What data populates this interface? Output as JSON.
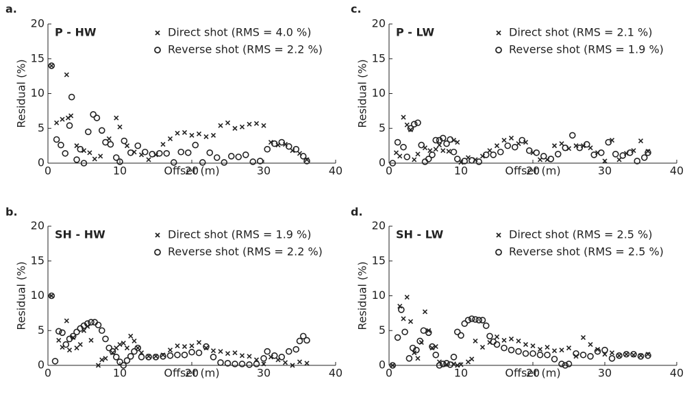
{
  "chart_data": [
    {
      "type": "scatter",
      "panel_label": "a.",
      "title": "P - HW",
      "xlabel": "Offset (m)",
      "ylabel": "Residual (%)",
      "xlim": [
        0,
        40
      ],
      "ylim": [
        0,
        20
      ],
      "xticks": [
        0,
        10,
        20,
        30,
        40
      ],
      "yticks": [
        0,
        5,
        10,
        15,
        20
      ],
      "series": [
        {
          "name": "Direct shot (RMS = 4.0 %)",
          "marker": "x",
          "color": "#222222",
          "x": [
            0.5,
            1.2,
            2,
            2.6,
            2.8,
            3.2,
            4,
            5,
            5.8,
            6.5,
            7.3,
            8.5,
            9.5,
            10,
            11,
            12,
            13,
            14,
            15,
            16,
            17,
            18,
            19,
            20,
            21,
            22,
            23,
            24,
            25,
            26,
            27,
            28,
            29,
            30,
            31,
            32,
            33,
            34,
            35,
            36
          ],
          "values": [
            14,
            5.8,
            6.3,
            12.7,
            6.5,
            6.8,
            2.5,
            1.8,
            1.5,
            0.6,
            1,
            3.5,
            6.5,
            5.2,
            2.5,
            1.6,
            1.2,
            0.5,
            1.2,
            2.7,
            3.5,
            4.3,
            4.4,
            4,
            4.2,
            3.8,
            4,
            5.4,
            5.8,
            5,
            5.2,
            5.6,
            5.7,
            5.4,
            3,
            2.6,
            2.7,
            1.8,
            1.4,
            0.5
          ]
        },
        {
          "name": "Reverse shot (RMS = 2.2 %)",
          "marker": "o",
          "color": "#222222",
          "x": [
            0.5,
            1.2,
            1.8,
            2.4,
            3,
            3.3,
            4,
            4.5,
            5,
            5.6,
            6.3,
            6.8,
            7.5,
            8,
            8.7,
            9.5,
            10,
            10.6,
            11.5,
            12.5,
            13.5,
            14.5,
            15.5,
            16.5,
            17.5,
            18.5,
            19.5,
            20.5,
            21.5,
            22.5,
            23.5,
            24.5,
            25.5,
            26.5,
            27.5,
            28.5,
            29.5,
            30.5,
            31.5,
            32.5,
            33.5,
            34.5,
            35.5,
            36
          ],
          "values": [
            14,
            3.4,
            2.6,
            1.4,
            5.4,
            9.5,
            0.5,
            2,
            0,
            4.5,
            7,
            6.5,
            4.7,
            3,
            2.7,
            0.8,
            0.2,
            3.2,
            1.5,
            2.5,
            1.6,
            1.3,
            1.4,
            1.4,
            0.1,
            1.6,
            1.5,
            2.6,
            0.1,
            1.5,
            0.8,
            0.1,
            1,
            0.9,
            1.2,
            0.2,
            0.3,
            2,
            2.8,
            3,
            2.4,
            2,
            1,
            0.3
          ]
        }
      ]
    },
    {
      "type": "scatter",
      "panel_label": "b.",
      "title": "SH - HW",
      "xlabel": "Offset (m)",
      "ylabel": "Residual (%)",
      "xlim": [
        0,
        40
      ],
      "ylim": [
        0,
        20
      ],
      "xticks": [
        0,
        10,
        20,
        30,
        40
      ],
      "yticks": [
        0,
        5,
        10,
        15,
        20
      ],
      "series": [
        {
          "name": "Direct shot (RMS = 1.9 %)",
          "marker": "x",
          "color": "#222222",
          "x": [
            0.5,
            1.5,
            2,
            2.6,
            3,
            3.5,
            4,
            4.5,
            5,
            5.5,
            6,
            7,
            7.5,
            8,
            9,
            9.5,
            10,
            10.5,
            11,
            11.5,
            12,
            12.5,
            13,
            14,
            15,
            16,
            17,
            18,
            19,
            20,
            21,
            22,
            23,
            24,
            25,
            26,
            27,
            28,
            29,
            30,
            31,
            32,
            33,
            34,
            35,
            36
          ],
          "values": [
            10,
            3.6,
            2.6,
            6.4,
            2.2,
            4,
            2.5,
            3,
            5,
            5.6,
            3.6,
            0,
            0.8,
            1,
            1.8,
            2.5,
            3,
            3.2,
            2.5,
            4.2,
            3.5,
            2.5,
            1.8,
            1.3,
            1.3,
            1.5,
            2.2,
            2.8,
            2.7,
            2.8,
            3.3,
            2.5,
            2.1,
            2,
            1.7,
            1.8,
            1.4,
            1.3,
            0.8,
            0.2,
            1.2,
            0.8,
            0.4,
            0,
            0.5,
            0.3
          ]
        },
        {
          "name": "Reverse shot (RMS = 2.2 %)",
          "marker": "o",
          "color": "#222222",
          "x": [
            0.5,
            1,
            1.5,
            2,
            2.5,
            3,
            3.5,
            4,
            4.5,
            5,
            5.5,
            6,
            6.5,
            7,
            7.5,
            8,
            8.5,
            9,
            9.5,
            10,
            10.5,
            11,
            11.5,
            12,
            12.5,
            13,
            14,
            15,
            16,
            17,
            18,
            19,
            20,
            21,
            22,
            23,
            24,
            25,
            26,
            27,
            28,
            29,
            30,
            30.5,
            31.5,
            32.5,
            33.5,
            34.5,
            35,
            35.5,
            36
          ],
          "values": [
            10,
            0.6,
            4.9,
            4.7,
            3,
            3.8,
            4.2,
            4.8,
            5.3,
            5.7,
            6,
            6.2,
            6.2,
            5.8,
            5,
            3.8,
            2.5,
            2,
            1.2,
            0.5,
            0,
            0.7,
            1.3,
            2,
            2.5,
            1.2,
            1.2,
            1.2,
            1.3,
            1.4,
            1.5,
            1.5,
            1.9,
            1.8,
            2.7,
            1.2,
            0.4,
            0.3,
            0.2,
            0.2,
            0.1,
            0.2,
            1,
            2,
            1.4,
            1.2,
            2,
            2.3,
            3.5,
            4.2,
            3.6
          ]
        }
      ]
    },
    {
      "type": "scatter",
      "panel_label": "c.",
      "title": "P - LW",
      "xlabel": "Offset (m)",
      "ylabel": "Residual (%)",
      "xlim": [
        0,
        40
      ],
      "ylim": [
        0,
        20
      ],
      "xticks": [
        0,
        10,
        20,
        30,
        40
      ],
      "yticks": [
        0,
        5,
        10,
        15,
        20
      ],
      "series": [
        {
          "name": "Direct shot (RMS = 2.1 %)",
          "marker": "x",
          "color": "#222222",
          "x": [
            1,
            1.5,
            2,
            2.5,
            3,
            3.5,
            4,
            5,
            5.7,
            6.5,
            7,
            7.5,
            8.3,
            9,
            9.5,
            10,
            11,
            12,
            13,
            14,
            15,
            16,
            17,
            18,
            19,
            20,
            21,
            22,
            23,
            24,
            25,
            26,
            27,
            28,
            29,
            30,
            31,
            32,
            33,
            34,
            35,
            36
          ],
          "values": [
            1.5,
            1,
            6.6,
            5.5,
            4.8,
            0.5,
            1.3,
            2.2,
            1.8,
            2,
            2.6,
            1.8,
            1.7,
            3.3,
            3,
            0.1,
            0.8,
            0.5,
            1,
            1.8,
            2.5,
            3.3,
            3.6,
            2.8,
            3,
            1.5,
            0.5,
            0.5,
            2.5,
            2.8,
            2.1,
            2.5,
            2.5,
            2.2,
            1.5,
            0.3,
            3.3,
            0.5,
            1.4,
            1.8,
            3.2,
            1.7
          ]
        },
        {
          "name": "Reverse shot (RMS = 1.9 %)",
          "marker": "o",
          "color": "#222222",
          "x": [
            0.5,
            1.2,
            2,
            2.5,
            3,
            3.5,
            4,
            4.5,
            5,
            5.5,
            6,
            6.5,
            7,
            7.5,
            8,
            8.5,
            9,
            9.5,
            10.5,
            11.5,
            12.5,
            13.5,
            14.5,
            15.5,
            16.5,
            17.5,
            18.5,
            19.5,
            20.5,
            21.5,
            22.5,
            23.5,
            24.5,
            25.5,
            26.5,
            27.5,
            28.5,
            29.5,
            30.5,
            31.5,
            32.5,
            33.5,
            34.5,
            35.5,
            36
          ],
          "values": [
            0,
            3,
            2.3,
            0.9,
            5,
            5.6,
            5.8,
            2.6,
            0.2,
            0.6,
            1.2,
            3.3,
            3.3,
            3.6,
            2.8,
            3.4,
            1.6,
            0.6,
            0.3,
            0.4,
            0.2,
            1.2,
            1.2,
            1.6,
            2.5,
            2.3,
            3.3,
            1.8,
            1.5,
            1,
            0.6,
            1.3,
            2.2,
            4,
            2.2,
            2.7,
            1.2,
            1.5,
            3,
            1.3,
            1.1,
            1.5,
            0.3,
            0.8,
            1.5
          ]
        }
      ]
    },
    {
      "type": "scatter",
      "panel_label": "d.",
      "title": "SH - LW",
      "xlabel": "Offset (m)",
      "ylabel": "Residual (%)",
      "xlim": [
        0,
        40
      ],
      "ylim": [
        0,
        20
      ],
      "xticks": [
        0,
        10,
        20,
        30,
        40
      ],
      "yticks": [
        0,
        5,
        10,
        15,
        20
      ],
      "series": [
        {
          "name": "Direct shot (RMS = 2.5 %)",
          "marker": "x",
          "color": "#222222",
          "x": [
            0.5,
            1.5,
            2,
            2.5,
            3,
            3.5,
            4,
            4.5,
            5,
            5.5,
            6,
            6.5,
            7,
            8,
            9,
            9.5,
            10,
            11,
            11.5,
            12,
            13,
            14,
            15,
            16,
            17,
            18,
            19,
            20,
            21,
            22,
            23,
            24,
            25,
            26,
            27,
            28,
            29,
            30,
            31,
            32,
            33,
            34,
            35,
            36
          ],
          "values": [
            0,
            8.5,
            6.7,
            9.8,
            6.3,
            1.8,
            1,
            3.3,
            7.7,
            5,
            2.5,
            2.7,
            0.5,
            0.1,
            0.2,
            0,
            0.1,
            0.5,
            0.9,
            3.5,
            2.6,
            3.3,
            4.1,
            3.6,
            3.8,
            3.5,
            3,
            2.8,
            2.3,
            2.6,
            2.1,
            2.2,
            2.5,
            1.3,
            4,
            3,
            2.3,
            1.6,
            1.8,
            1.4,
            1.6,
            1.5,
            1.4,
            1.6
          ]
        },
        {
          "name": "Reverse shot (RMS = 2.5 %)",
          "marker": "o",
          "color": "#222222",
          "x": [
            0.5,
            1.2,
            1.7,
            2.2,
            2.8,
            3.3,
            3.8,
            4.3,
            4.8,
            5.5,
            6,
            6.5,
            7,
            7.5,
            8,
            8.5,
            9,
            9.5,
            10,
            10.5,
            11,
            11.5,
            12,
            12.5,
            13,
            13.5,
            14,
            14.5,
            15,
            16,
            17,
            18,
            19,
            20,
            21,
            22,
            23,
            24,
            24.5,
            25,
            26,
            27,
            28,
            29,
            30,
            31,
            32,
            33,
            34,
            35,
            36
          ],
          "values": [
            0,
            4,
            8,
            4.8,
            1,
            2.5,
            2.2,
            3.5,
            5,
            4.7,
            2.7,
            1.5,
            0,
            0.2,
            0.3,
            0.1,
            1.2,
            4.8,
            4.3,
            6,
            6.5,
            6.7,
            6.6,
            6.5,
            6.5,
            5.7,
            4.2,
            3.4,
            3,
            2.5,
            2.2,
            2,
            1.7,
            1.7,
            1.5,
            1.5,
            0.9,
            0.2,
            0,
            0.2,
            1.7,
            1.5,
            1.3,
            2,
            2.2,
            1,
            1.4,
            1.6,
            1.6,
            1.3,
            1.4
          ]
        }
      ]
    }
  ]
}
